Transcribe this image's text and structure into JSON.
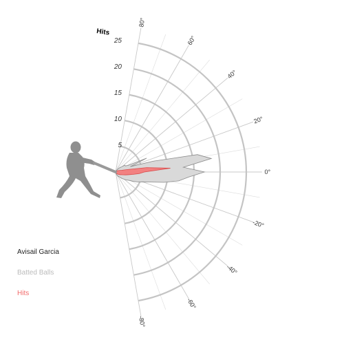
{
  "legend": {
    "player": "Avisail Garcia",
    "batted_label": "Batted Balls",
    "hits_label": "Hits"
  },
  "colors": {
    "batted_fill": "#d9d9d9",
    "batted_stroke": "#8a8a8a",
    "hits_fill": "#f47a7a",
    "hits_stroke": "#d94a4a",
    "grid_ring": "#c4c4c4",
    "grid_spoke": "#dcdcdc",
    "hits_legend": "#f26b6b",
    "batted_legend": "#bbbbbb",
    "silhouette": "#8f8f8f"
  },
  "icons": {
    "batter": "batter-silhouette-icon"
  },
  "chart_data": {
    "type": "polar-area",
    "title": "",
    "radial_axis_label": "Hits",
    "radial_ticks": [
      5,
      10,
      15,
      20,
      25
    ],
    "radial_range": [
      0,
      28
    ],
    "angle_range": [
      -80,
      80
    ],
    "angle_ticks": [
      80,
      60,
      40,
      20,
      0,
      -20,
      -40,
      -60,
      -80
    ],
    "angle_tick_labels": [
      "80°",
      "60°",
      "40°",
      "20°",
      "0°",
      "-20°",
      "-40°",
      "-60°",
      "-80°"
    ],
    "angle_step": 4,
    "series": [
      {
        "name": "Batted Balls",
        "angles": [
          -80,
          -76,
          -72,
          -68,
          -64,
          -60,
          -56,
          -52,
          -48,
          -44,
          -40,
          -36,
          -32,
          -28,
          -24,
          -20,
          -16,
          -12,
          -8,
          -4,
          0,
          4,
          8,
          12,
          16,
          20,
          24,
          28,
          32,
          36,
          40,
          44,
          48,
          52,
          56,
          60,
          64,
          68,
          72,
          76,
          80
        ],
        "values": [
          0,
          0.3,
          0.3,
          0.6,
          0.6,
          1,
          1,
          1.2,
          1.5,
          1.8,
          2.2,
          2.6,
          3,
          3.8,
          4.7,
          5.5,
          7,
          9.5,
          12.2,
          14,
          17,
          13,
          18.5,
          16,
          7.5,
          3,
          6.5,
          2.7,
          2.2,
          2.2,
          1.6,
          1.2,
          1,
          0.7,
          0.5,
          0.3,
          0.3,
          0.2,
          0.2,
          0,
          0
        ]
      },
      {
        "name": "Hits",
        "angles": [
          -80,
          -76,
          -72,
          -68,
          -64,
          -60,
          -56,
          -52,
          -48,
          -44,
          -40,
          -36,
          -32,
          -28,
          -24,
          -20,
          -16,
          -12,
          -8,
          -4,
          0,
          4,
          8,
          12,
          16,
          20,
          24,
          28,
          32,
          36,
          40,
          44,
          48,
          52,
          56,
          60,
          64,
          68,
          72,
          76,
          80
        ],
        "values": [
          0,
          0,
          0,
          0,
          0.2,
          0.2,
          0.3,
          0.4,
          0.5,
          0.6,
          0.7,
          0.8,
          1,
          1.1,
          1.3,
          1.6,
          2,
          2.5,
          3.3,
          4.5,
          5.5,
          10.5,
          6,
          2.2,
          1.2,
          0.9,
          0.7,
          0.6,
          0.5,
          0.4,
          0.3,
          0.2,
          0.2,
          0.1,
          0.1,
          0,
          0,
          0,
          0,
          0,
          0
        ]
      }
    ],
    "grid": true,
    "legend_position": "bottom-left"
  }
}
